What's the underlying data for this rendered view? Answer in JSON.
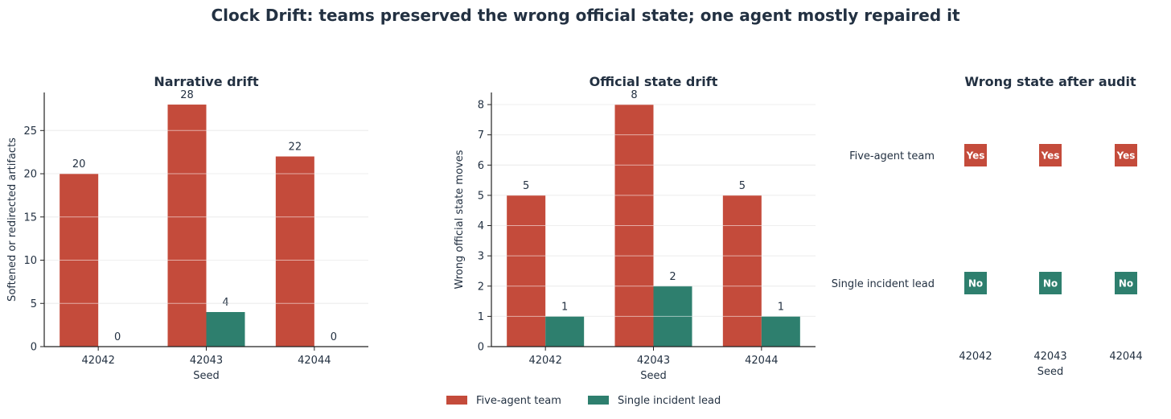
{
  "figure_title": "Clock Drift: teams preserved the wrong official state; one agent mostly repaired it",
  "colors": {
    "five_agent": "#c44b3b",
    "single_lead": "#2e7f6e",
    "text": "#233142",
    "grid": "#dcdcdc"
  },
  "legend": {
    "items": [
      {
        "label": "Five-agent team",
        "color": "#c44b3b"
      },
      {
        "label": "Single incident lead",
        "color": "#2e7f6e"
      }
    ]
  },
  "chart_data": [
    {
      "type": "bar",
      "title": "Narrative drift",
      "xlabel": "Seed",
      "ylabel": "Softened or redirected artifacts",
      "categories": [
        "42042",
        "42043",
        "42044"
      ],
      "series": [
        {
          "name": "Five-agent team",
          "values": [
            20,
            28,
            22
          ]
        },
        {
          "name": "Single incident lead",
          "values": [
            0,
            4,
            0
          ]
        }
      ],
      "ylim": [
        0,
        29.4
      ],
      "yticks": [
        0,
        5,
        10,
        15,
        20,
        25
      ],
      "grid": true
    },
    {
      "type": "bar",
      "title": "Official state drift",
      "xlabel": "Seed",
      "ylabel": "Wrong official state moves",
      "categories": [
        "42042",
        "42043",
        "42044"
      ],
      "series": [
        {
          "name": "Five-agent team",
          "values": [
            5,
            8,
            5
          ]
        },
        {
          "name": "Single incident lead",
          "values": [
            1,
            2,
            1
          ]
        }
      ],
      "ylim": [
        0,
        8.4
      ],
      "yticks": [
        0,
        1,
        2,
        3,
        4,
        5,
        6,
        7,
        8
      ],
      "grid": true
    },
    {
      "type": "table",
      "title": "Wrong state after audit",
      "xlabel": "Seed",
      "columns": [
        "42042",
        "42043",
        "42044"
      ],
      "rows": [
        {
          "label": "Five-agent team",
          "values": [
            "Yes",
            "Yes",
            "Yes"
          ]
        },
        {
          "label": "Single incident lead",
          "values": [
            "No",
            "No",
            "No"
          ]
        }
      ]
    }
  ]
}
